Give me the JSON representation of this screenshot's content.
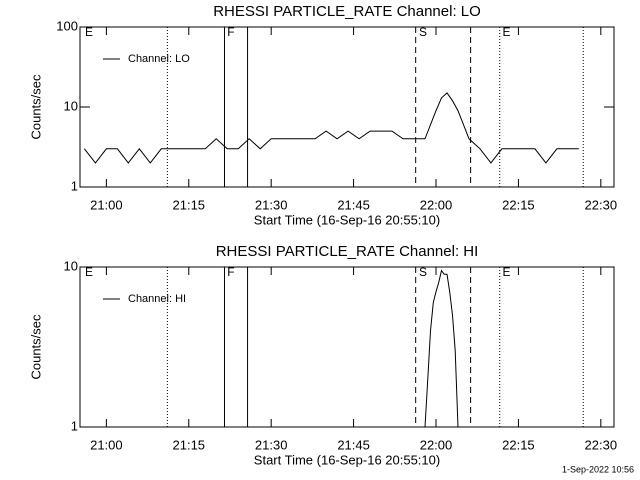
{
  "chart_data": [
    {
      "type": "line",
      "title": "RHESSI PARTICLE_RATE Channel: LO",
      "xlabel": "Start Time (16-Sep-16 20:55:10)",
      "ylabel": "Counts/sec",
      "log_y": true,
      "xlim": [
        1255.2,
        1352.4
      ],
      "ylim": [
        1,
        100
      ],
      "xticks": [
        {
          "value": 1260,
          "label": "21:00"
        },
        {
          "value": 1275,
          "label": "21:15"
        },
        {
          "value": 1290,
          "label": "21:30"
        },
        {
          "value": 1305,
          "label": "21:45"
        },
        {
          "value": 1320,
          "label": "22:00"
        },
        {
          "value": 1335,
          "label": "22:15"
        },
        {
          "value": 1350,
          "label": "22:30"
        }
      ],
      "yticks": [
        1,
        10,
        100
      ],
      "series": [
        {
          "name": "Channel: LO",
          "color": "#000000",
          "x": [
            1256,
            1258,
            1260,
            1262,
            1264,
            1266,
            1268,
            1270,
            1272,
            1274,
            1276,
            1278,
            1280,
            1282,
            1284,
            1286,
            1288,
            1290,
            1292,
            1294,
            1296,
            1298,
            1300,
            1302,
            1304,
            1306,
            1308,
            1310,
            1312,
            1314,
            1316,
            1318,
            1319,
            1320,
            1321,
            1322,
            1323,
            1324,
            1325,
            1326,
            1328,
            1330,
            1332,
            1334,
            1336,
            1338,
            1340,
            1342,
            1344,
            1346
          ],
          "values": [
            3,
            2,
            3,
            3,
            2,
            3,
            2,
            3,
            3,
            3,
            3,
            3,
            4,
            3,
            3,
            4,
            3,
            4,
            4,
            4,
            4,
            4,
            5,
            4,
            5,
            4,
            5,
            5,
            5,
            4,
            4,
            4,
            6,
            9,
            13,
            15,
            12,
            9,
            6,
            4,
            3,
            2,
            3,
            3,
            3,
            3,
            2,
            3,
            3,
            3
          ]
        }
      ],
      "vlines": [
        {
          "x": 1271.1,
          "style": "dotted"
        },
        {
          "x": 1281.5,
          "style": "solid"
        },
        {
          "x": 1285.7,
          "style": "solid"
        },
        {
          "x": 1316.3,
          "style": "dashed"
        },
        {
          "x": 1326.3,
          "style": "dashed"
        },
        {
          "x": 1331.6,
          "style": "dotted"
        },
        {
          "x": 1346.8,
          "style": "dotted"
        }
      ],
      "flags": [
        {
          "x": 1256.1,
          "label": "E"
        },
        {
          "x": 1282.0,
          "label": "F"
        },
        {
          "x": 1316.9,
          "label": "S"
        },
        {
          "x": 1332.1,
          "label": "E"
        }
      ]
    },
    {
      "type": "line",
      "title": "RHESSI PARTICLE_RATE Channel: HI",
      "xlabel": "Start Time (16-Sep-16 20:55:10)",
      "ylabel": "Counts/sec",
      "log_y": true,
      "xlim": [
        1255.2,
        1352.4
      ],
      "ylim": [
        1,
        10
      ],
      "xticks": [
        {
          "value": 1260,
          "label": "21:00"
        },
        {
          "value": 1275,
          "label": "21:15"
        },
        {
          "value": 1290,
          "label": "21:30"
        },
        {
          "value": 1305,
          "label": "21:45"
        },
        {
          "value": 1320,
          "label": "22:00"
        },
        {
          "value": 1335,
          "label": "22:15"
        },
        {
          "value": 1350,
          "label": "22:30"
        }
      ],
      "yticks": [
        1,
        10
      ],
      "series": [
        {
          "name": "Channel: HI",
          "color": "#000000",
          "x": [
            1318,
            1318.5,
            1319,
            1319.5,
            1320,
            1320.5,
            1321,
            1321.5,
            1322,
            1322.5,
            1323,
            1323.5,
            1324
          ],
          "values": [
            1,
            2,
            4,
            6,
            7,
            8,
            9.5,
            9,
            9,
            7,
            5,
            3,
            1
          ]
        }
      ],
      "vlines": [
        {
          "x": 1271.1,
          "style": "dotted"
        },
        {
          "x": 1281.5,
          "style": "solid"
        },
        {
          "x": 1285.7,
          "style": "solid"
        },
        {
          "x": 1316.3,
          "style": "dashed"
        },
        {
          "x": 1326.3,
          "style": "dashed"
        },
        {
          "x": 1331.6,
          "style": "dotted"
        },
        {
          "x": 1346.8,
          "style": "dotted"
        }
      ],
      "flags": [
        {
          "x": 1256.1,
          "label": "E"
        },
        {
          "x": 1282.0,
          "label": "F"
        },
        {
          "x": 1316.9,
          "label": "S"
        },
        {
          "x": 1332.1,
          "label": "E"
        }
      ]
    }
  ],
  "footer": "1-Sep-2022 10:56"
}
